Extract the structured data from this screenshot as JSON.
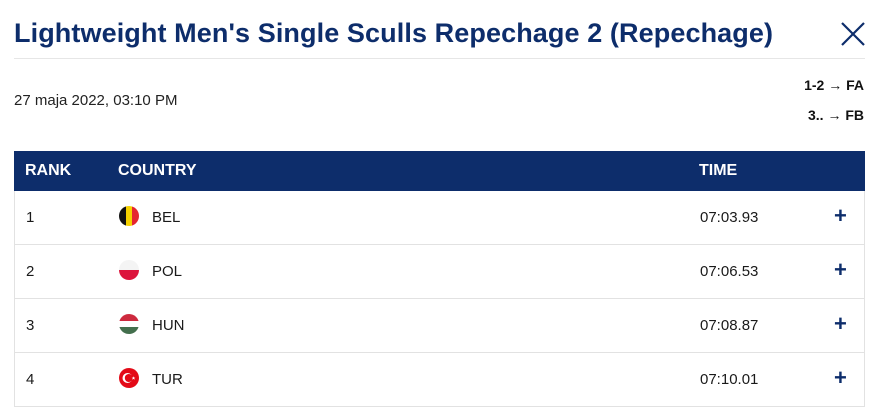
{
  "header": {
    "title": "Lightweight Men's Single Sculls Repechage 2 (Repechage)",
    "close_icon": "close-icon"
  },
  "meta": {
    "date": "27 maja 2022, 03:10 PM",
    "progression": [
      {
        "ranks": "1-2",
        "arrow": "→",
        "final": "FA"
      },
      {
        "ranks": "3..",
        "arrow": "→",
        "final": "FB"
      }
    ]
  },
  "table": {
    "headers": {
      "rank": "RANK",
      "country": "COUNTRY",
      "time": "TIME"
    },
    "rows": [
      {
        "rank": "1",
        "country": "BEL",
        "flag": "belgium-flag-icon",
        "time": "07:03.93",
        "expand": "+"
      },
      {
        "rank": "2",
        "country": "POL",
        "flag": "poland-flag-icon",
        "time": "07:06.53",
        "expand": "+"
      },
      {
        "rank": "3",
        "country": "HUN",
        "flag": "hungary-flag-icon",
        "time": "07:08.87",
        "expand": "+"
      },
      {
        "rank": "4",
        "country": "TUR",
        "flag": "turkey-flag-icon",
        "time": "07:10.01",
        "expand": "+"
      }
    ]
  },
  "colors": {
    "accent": "#0d2d6b",
    "header_bg": "#0d2d6b",
    "row_border": "#e2e2e2"
  }
}
